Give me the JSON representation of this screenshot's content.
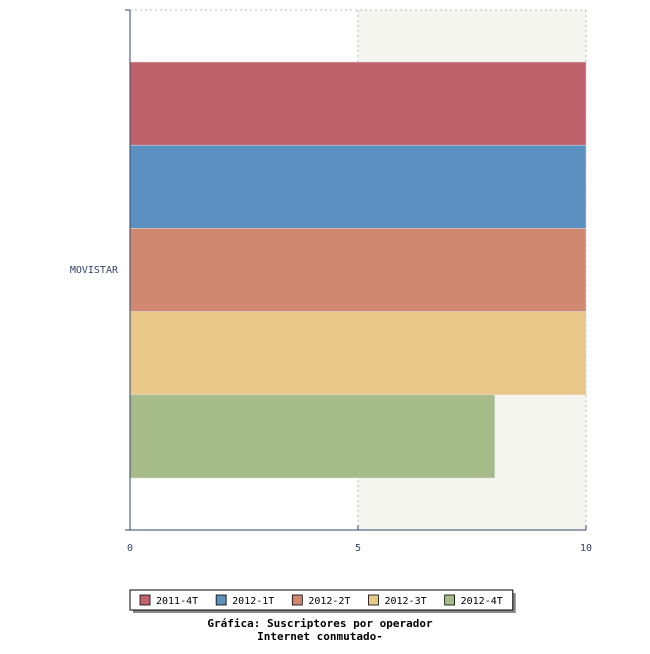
{
  "chart_data": {
    "type": "hbar",
    "title": "Gráfica: Suscriptores por operador",
    "subtitle": "Internet conmutado-",
    "categories": [
      "MOVISTAR"
    ],
    "series": [
      {
        "name": "2011-4T",
        "color": "#c0626b",
        "values": [
          10
        ]
      },
      {
        "name": "2012-1T",
        "color": "#5b90c0",
        "values": [
          10
        ]
      },
      {
        "name": "2012-2T",
        "color": "#d08870",
        "values": [
          10
        ]
      },
      {
        "name": "2012-3T",
        "color": "#e8c98a",
        "values": [
          10
        ]
      },
      {
        "name": "2012-4T",
        "color": "#a5bc8a",
        "values": [
          8
        ]
      }
    ],
    "xlim": [
      0,
      10
    ],
    "xticks": [
      0,
      5,
      10
    ],
    "grid": true
  }
}
